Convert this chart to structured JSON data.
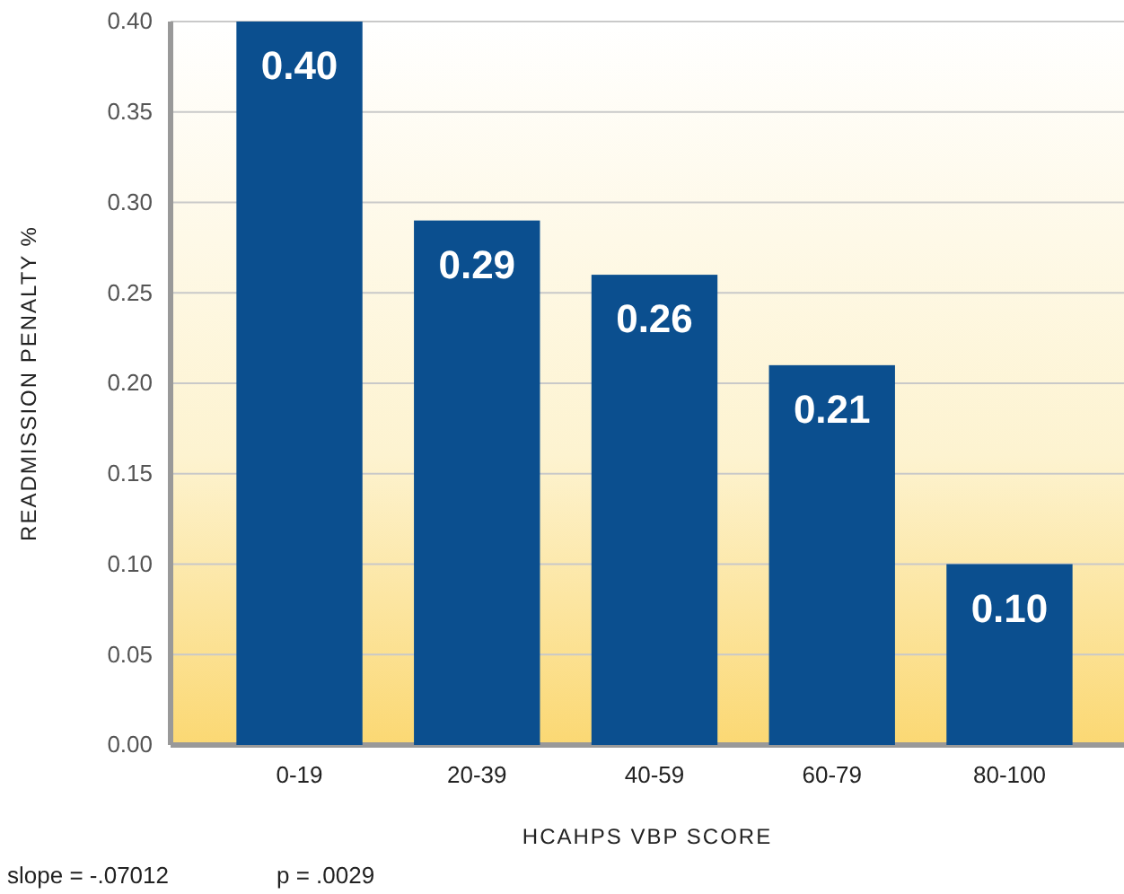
{
  "chart_data": {
    "type": "bar",
    "xlabel": "HCAHPS VBP SCORE",
    "ylabel": "READMISSION PENALTY %",
    "categories": [
      "0-19",
      "20-39",
      "40-59",
      "60-79",
      "80-100"
    ],
    "values": [
      0.4,
      0.29,
      0.26,
      0.21,
      0.1
    ],
    "color": "#0b4f8f",
    "ylim": [
      0,
      0.4
    ],
    "yticks": [
      {
        "value": 0,
        "label": "0.00"
      },
      {
        "value": 0.05,
        "label": "0.05"
      },
      {
        "value": 0.1,
        "label": "0.10"
      },
      {
        "value": 0.15,
        "label": "0.15"
      },
      {
        "value": 0.2,
        "label": "0.20"
      },
      {
        "value": 0.25,
        "label": "0.25"
      },
      {
        "value": 0.3,
        "label": "0.30"
      },
      {
        "value": 0.35,
        "label": "0.35"
      },
      {
        "value": 0.4,
        "label": "0.40"
      }
    ],
    "value_labels": [
      "0.40",
      "0.29",
      "0.26",
      "0.21",
      "0.10"
    ],
    "grid": "y",
    "annotations": [
      "slope = -.07012",
      "p = .0029"
    ]
  }
}
